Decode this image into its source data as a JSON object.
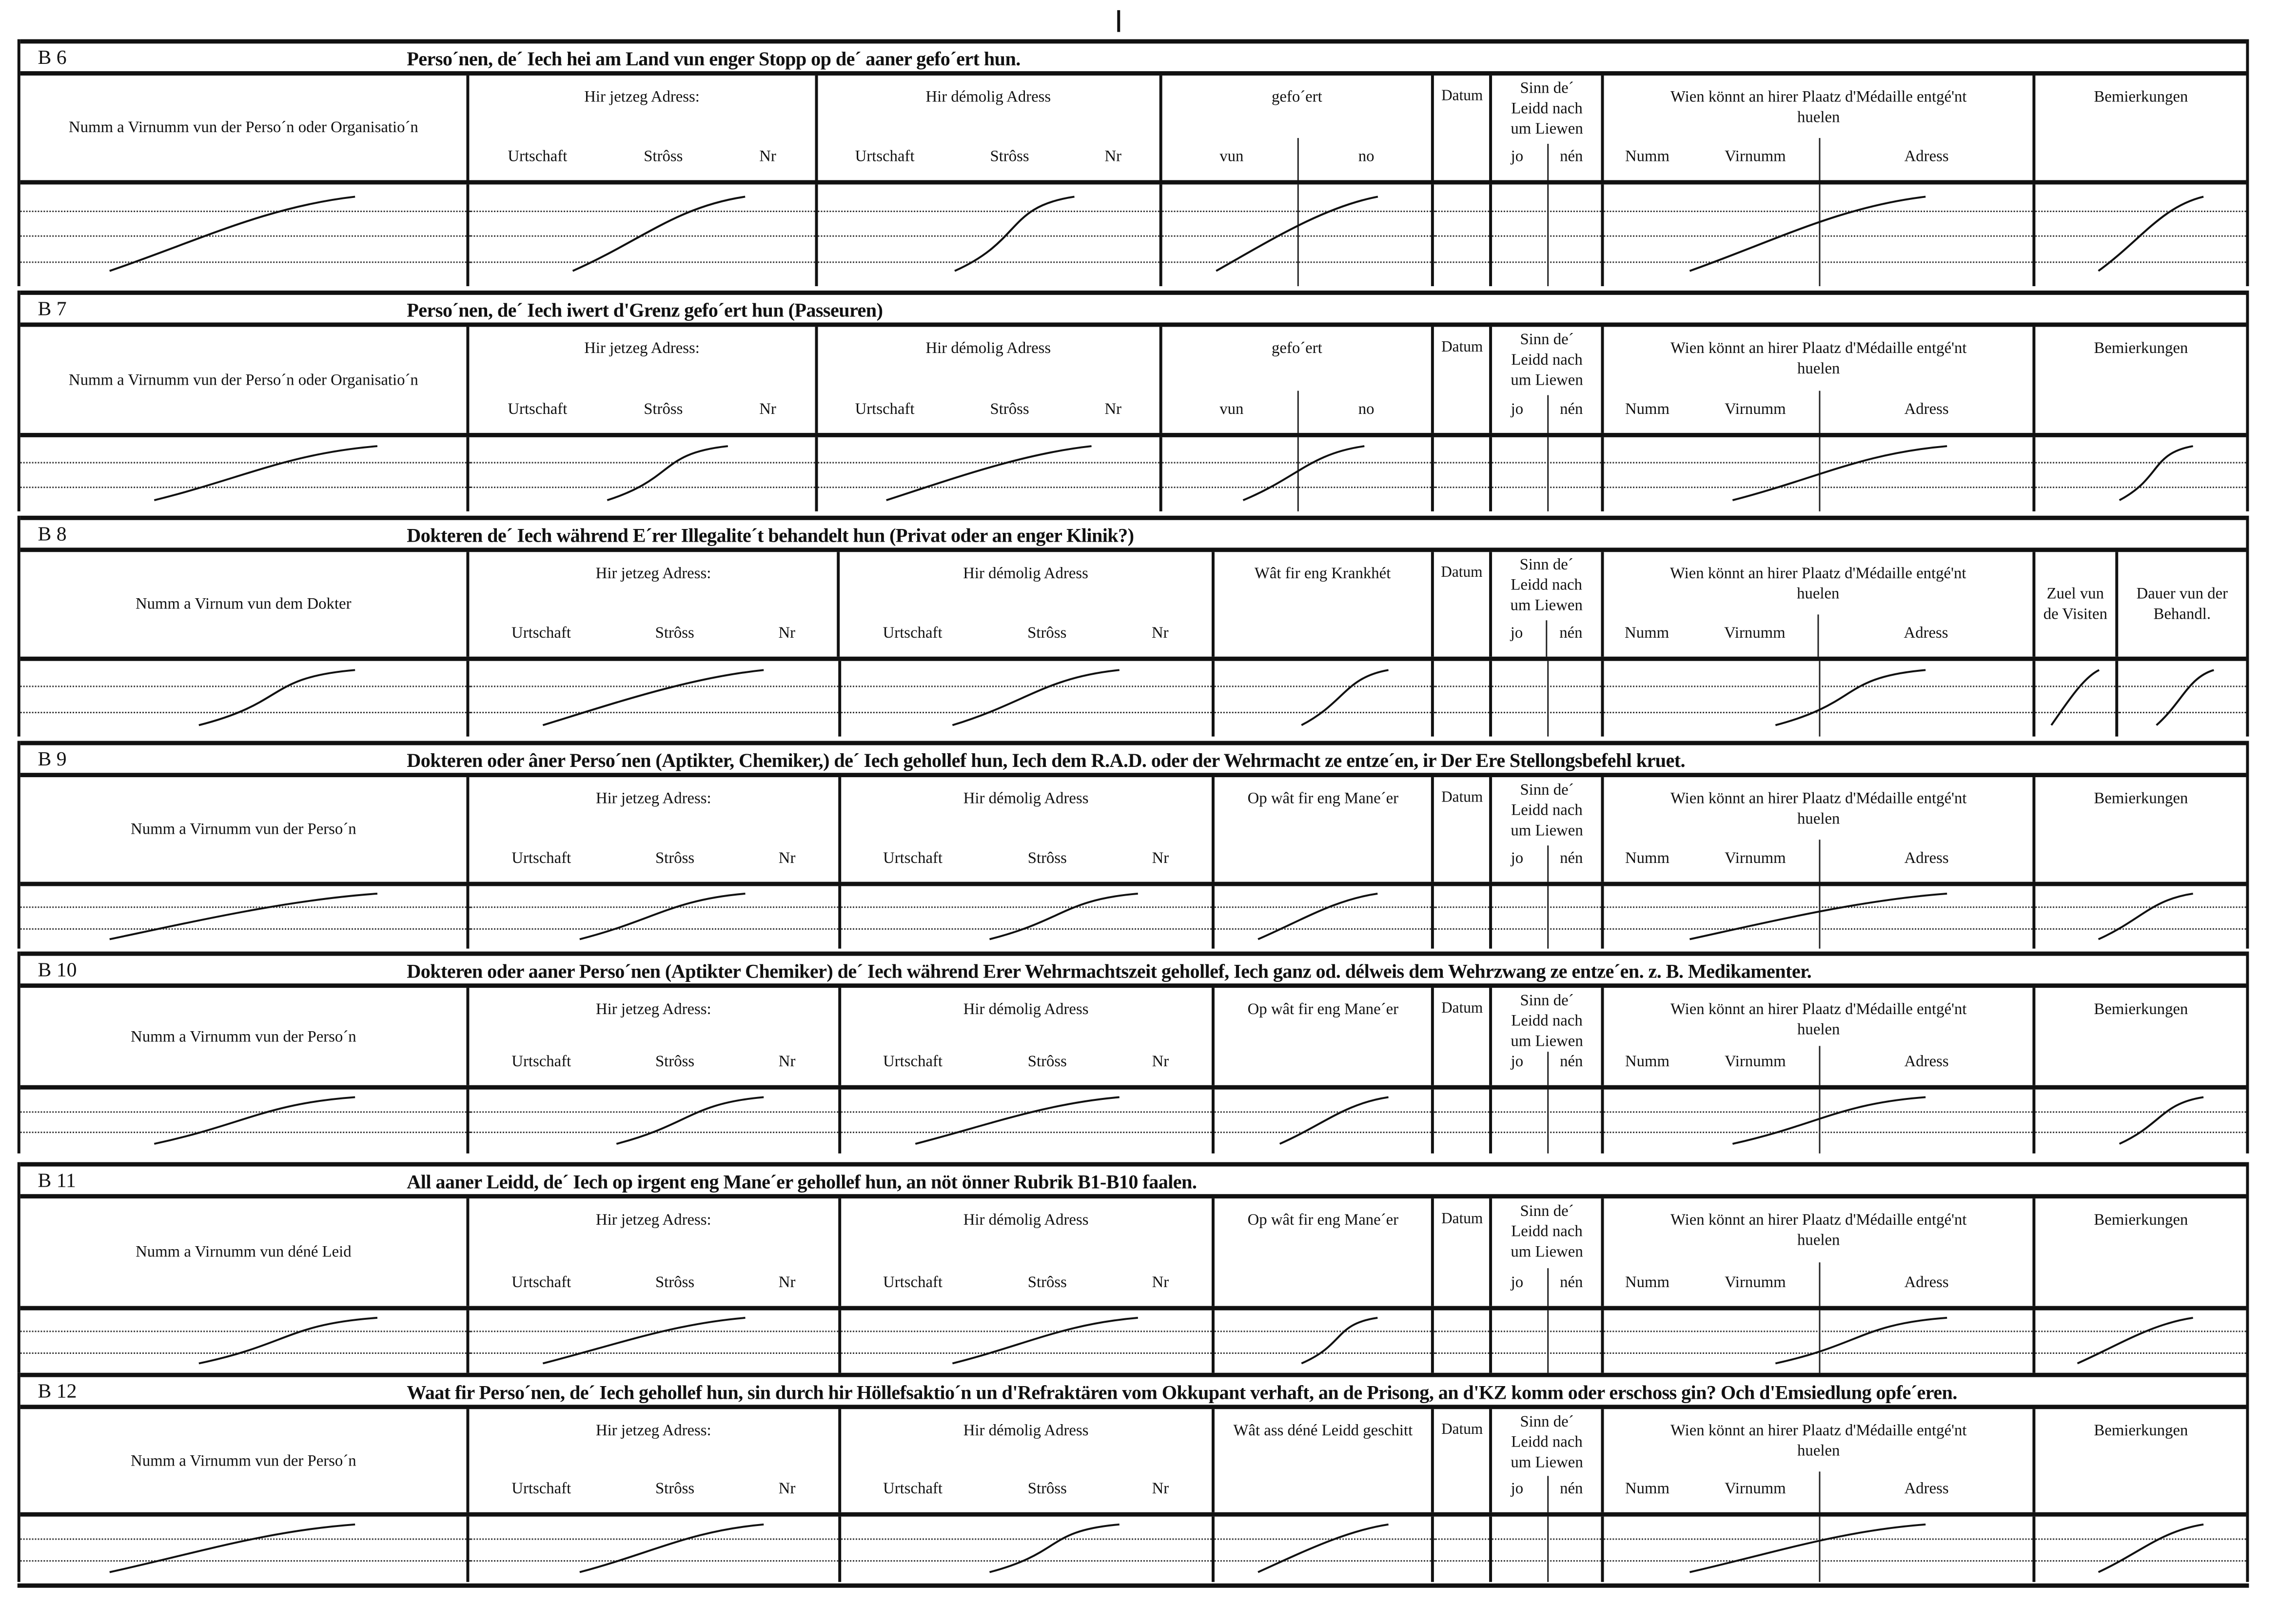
{
  "document": {
    "sections": [
      {
        "label": "B 6",
        "title": "Perso´nen, de´ Iech hei am Land vun enger Stopp  op de´ aaner gefo´ert hun.",
        "name_header": "Numm a Virnumm vun der Perso´n oder Organisatio´n",
        "col4": {
          "title": "gefo´ert",
          "sub": [
            "vun",
            "no"
          ]
        },
        "last": [
          "Bemierkungen"
        ]
      },
      {
        "label": "B 7",
        "title": "Perso´nen, de´ Iech iwert d'Grenz gefo´ert hun (Passeuren)",
        "name_header": "Numm a Virnumm vun der Perso´n oder Organisatio´n",
        "col4": {
          "title": "gefo´ert",
          "sub": [
            "vun",
            "no"
          ]
        },
        "last": [
          "Bemierkungen"
        ]
      },
      {
        "label": "B 8",
        "title": "Dokteren de´ Iech während E´rer Illegalite´t behandelt hun (Privat oder an enger Klinik?)",
        "name_header": "Numm a Virnum vun dem Dokter",
        "col4": {
          "title": "Wât fir eng Krankhét"
        },
        "last": [
          "Zuel vun de Visiten",
          "Dauer vun der Behandl."
        ]
      },
      {
        "label": "B 9",
        "title": "Dokteren oder âner Perso´nen (Aptikter, Chemiker,) de´ Iech gehollef hun, Iech dem R.A.D. oder der Wehrmacht ze entze´en, ir Der Ere Stellongsbefehl kruet.",
        "name_header": "Numm a Virnumm vun der Perso´n",
        "col4": {
          "title": "Op wât fir eng Mane´er"
        },
        "last": [
          "Bemierkungen"
        ]
      },
      {
        "label": "B 10",
        "title": "Dokteren oder aaner Perso´nen (Aptikter Chemiker) de´ Iech während Erer Wehrmachtszeit gehollef, Iech ganz od. délweis dem Wehrzwang ze entze´en. z. B. Medikamenter.",
        "name_header": "Numm a Virnumm vun der Perso´n",
        "col4": {
          "title": "Op wât fir eng Mane´er"
        },
        "last": [
          "Bemierkungen"
        ]
      },
      {
        "label": "B 11",
        "title": "All aaner Leidd, de´ Iech op irgent eng Mane´er gehollef hun, an nöt önner Rubrik B1-B10 faalen.",
        "name_header": "Numm a Virnumm vun déné Leid",
        "col4": {
          "title": "Op wât fir eng Mane´er"
        },
        "last": [
          "Bemierkungen"
        ]
      },
      {
        "label": "B 12",
        "title": "Waat fir Perso´nen, de´ Iech gehollef hun, sin durch hir Höllefsaktio´n un d'Refraktären vom Okkupant verhaft, an de Prisong, an d'KZ komm oder erschoss gin? Och d'Emsiedlung opfe´eren.",
        "name_header": "Numm a Virnumm vun der Perso´n",
        "col4": {
          "title": "Wât ass déné Leidd geschitt"
        },
        "last": [
          "Bemierkungen"
        ]
      }
    ],
    "common": {
      "current_address": "Hir jetzeg Adress:",
      "former_address": "Hir démolig Adress",
      "address_sub": [
        "Urtschaft",
        "Strôss",
        "Nr"
      ],
      "date": "Datum",
      "alive": "Sinn de´ Leidd nach um Liewen",
      "alive_sub": [
        "jo",
        "nén"
      ],
      "medal": "Wien könnt an hirer Plaatz d'Médaille entgé'nt huelen",
      "medal_sub": [
        "Numm",
        "Virnumm",
        "Adress"
      ]
    }
  }
}
